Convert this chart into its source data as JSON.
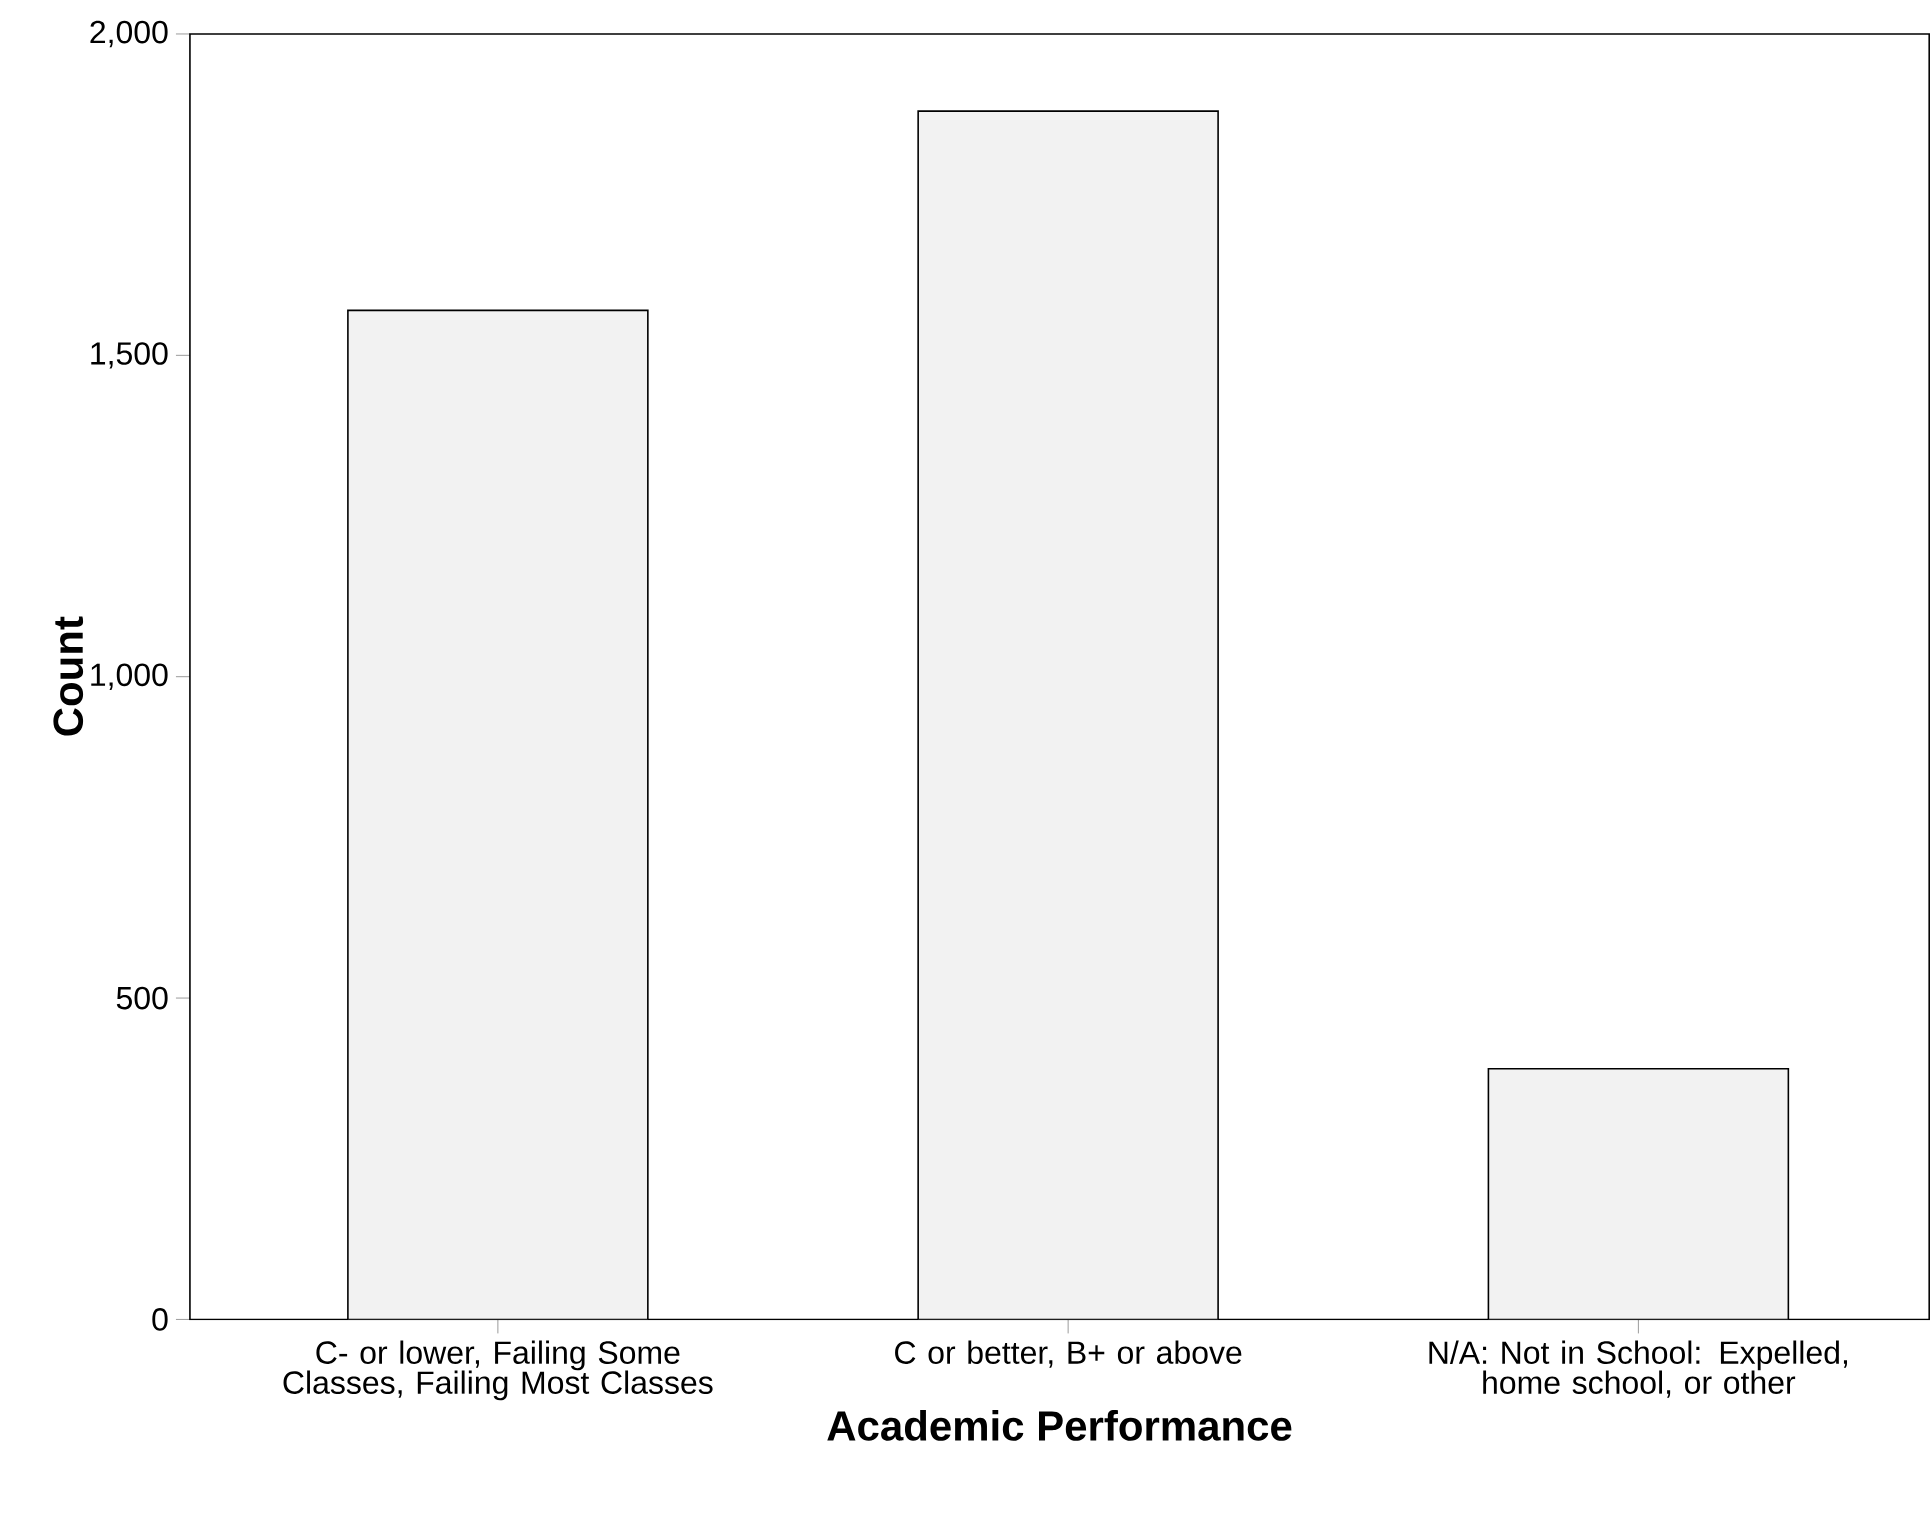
{
  "chart_data": {
    "type": "bar",
    "xlabel": "Academic Performance",
    "ylabel": "Count",
    "categories": [
      "C- or lower, Failing Some Classes, Failing Most Classes",
      "C or better,  B+ or above",
      "N/A: Not in School: Expelled, home school, or other"
    ],
    "values": [
      1570,
      1880,
      390
    ],
    "color": "#f2f2f2",
    "ylim": [
      0,
      2000
    ],
    "yticks": [
      0,
      500,
      {
        "value": 1000,
        "label": "1,000"
      },
      {
        "value": 1500,
        "label": "1,500"
      },
      {
        "value": 2000,
        "label": "2,000"
      }
    ],
    "grid": false
  }
}
